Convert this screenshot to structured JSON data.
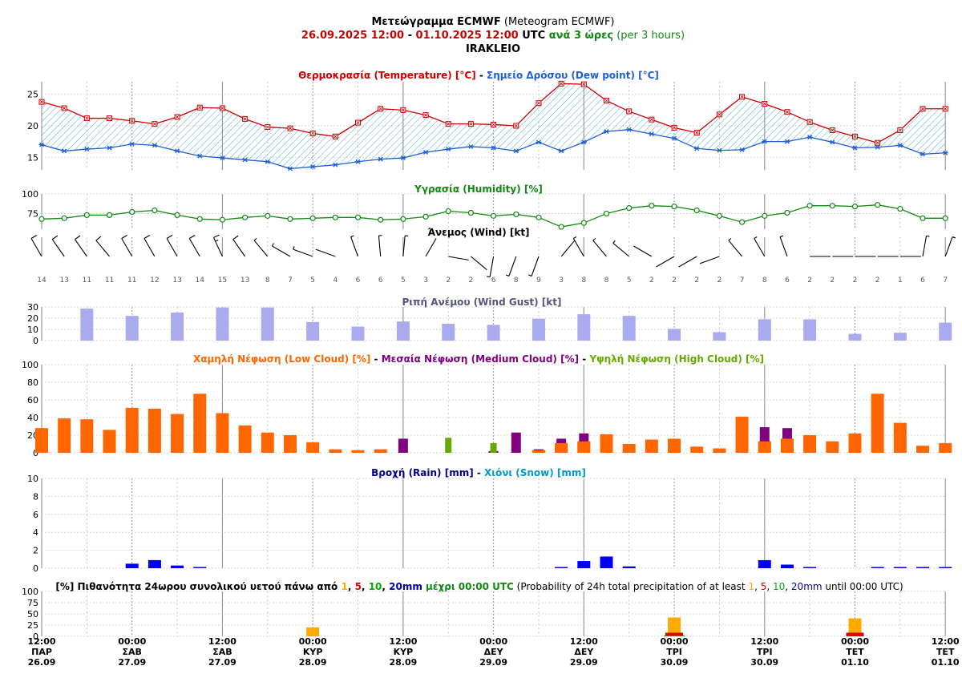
{
  "header": {
    "line1_bold": "Μετεώγραμμα ECMWF",
    "line1_normal": " (Meteogram ECMWF)",
    "start": "26.09.2025 12:00",
    "sep": " - ",
    "end": "01.10.2025 12:00",
    "utc": " UTC ",
    "every": "ανά 3 ώρες",
    "every_en": " (per 3 hours)",
    "location": "IRAKLEIO"
  },
  "panels": {
    "temp": {
      "title_a": "Θερμοκρασία (Temperature) [°C]",
      "title_sep": " - ",
      "title_b": "Σημείο Δρόσου (Dew point) [°C]",
      "yticks": [
        "15",
        "20",
        "25"
      ]
    },
    "humidity": {
      "title": "Υγρασία (Humidity) [%]",
      "yticks": [
        "75",
        "100"
      ]
    },
    "wind": {
      "title": "Άνεμος (Wind) [kt]"
    },
    "gust": {
      "title": "Ριπή Ανέμου (Wind Gust) [kt]",
      "yticks": [
        "0",
        "10",
        "20",
        "30"
      ]
    },
    "cloud": {
      "title_low": "Χαμηλή Νέφωση (Low Cloud) [%]",
      "title_sep1": " - ",
      "title_med": "Μεσαία Νέφωση (Medium Cloud) [%]",
      "title_sep2": " - ",
      "title_high": "Υψηλή Νέφωση (High Cloud) [%]",
      "yticks": [
        "0",
        "20",
        "40",
        "60",
        "80",
        "100"
      ]
    },
    "rain": {
      "title_rain": "Βροχή (Rain) [mm]",
      "title_sep": " - ",
      "title_snow": "Χιόνι (Snow) [mm]",
      "yticks": [
        "0",
        "2",
        "4",
        "6",
        "8",
        "10"
      ]
    },
    "prob": {
      "title_pre": "[%] Πιθανότητα 24ωρου συνολικού υετού πάνω από ",
      "t1": "1",
      "c1": ", ",
      "t5": "5",
      "c2": ", ",
      "t10": "10",
      "c3": ", ",
      "t20": "20mm",
      "title_mid": " μέχρι 00:00 UTC",
      "title_en_pre": " (Probability of 24h total precipitation of at least ",
      "e1": "1",
      "ec1": ", ",
      "e5": "5",
      "ec2": ", ",
      "e10": "10",
      "ec3": ", ",
      "e20": "20mm",
      "title_en_end": " until 00:00 UTC)",
      "yticks": [
        "0",
        "25",
        "50",
        "75",
        "100"
      ]
    }
  },
  "colors": {
    "temperature": "#cc0000",
    "dew_point": "#1f5fd6",
    "humidity": "#118811",
    "gust": "#aaaaee",
    "low_cloud": "#ff6600",
    "medium_cloud": "#800080",
    "high_cloud": "#66aa00",
    "rain": "#0000ee",
    "snow": "#0099cc",
    "prob1": "#ffaa00",
    "prob5": "#dd0000",
    "prob10": "#00aa00",
    "prob20": "#0000aa",
    "hatch": "#4aaed0"
  },
  "chart_data": {
    "type": "meteogram",
    "x_times": [
      "12:00",
      "15:00",
      "18:00",
      "21:00",
      "00:00",
      "03:00",
      "06:00",
      "09:00",
      "12:00",
      "15:00",
      "18:00",
      "21:00",
      "00:00",
      "03:00",
      "06:00",
      "09:00",
      "12:00",
      "15:00",
      "18:00",
      "21:00",
      "00:00",
      "03:00",
      "06:00",
      "09:00",
      "12:00",
      "15:00",
      "18:00",
      "21:00",
      "00:00",
      "03:00",
      "06:00",
      "09:00",
      "12:00",
      "15:00",
      "18:00",
      "21:00",
      "00:00",
      "03:00",
      "06:00",
      "09:00",
      "12:00"
    ],
    "x_axis_labels": [
      {
        "time": "12:00",
        "day": "ΠΑΡ",
        "date": "26.09"
      },
      {
        "time": "00:00",
        "day": "ΣΑΒ",
        "date": "27.09"
      },
      {
        "time": "12:00",
        "day": "ΣΑΒ",
        "date": "27.09"
      },
      {
        "time": "00:00",
        "day": "ΚΥΡ",
        "date": "28.09"
      },
      {
        "time": "12:00",
        "day": "ΚΥΡ",
        "date": "28.09"
      },
      {
        "time": "00:00",
        "day": "ΔΕΥ",
        "date": "29.09"
      },
      {
        "time": "12:00",
        "day": "ΔΕΥ",
        "date": "29.09"
      },
      {
        "time": "00:00",
        "day": "ΤΡΙ",
        "date": "30.09"
      },
      {
        "time": "12:00",
        "day": "ΤΡΙ",
        "date": "30.09"
      },
      {
        "time": "00:00",
        "day": "ΤΕΤ",
        "date": "01.10"
      },
      {
        "time": "12:00",
        "day": "ΤΕΤ",
        "date": "01.10"
      }
    ],
    "series": [
      {
        "name": "Θερμοκρασία (Temperature) [°C]",
        "values": [
          23.8,
          22.8,
          21.2,
          21.2,
          20.8,
          20.3,
          21.4,
          22.9,
          22.8,
          21.1,
          19.8,
          19.6,
          18.8,
          18.3,
          20.5,
          22.7,
          22.5,
          21.7,
          20.3,
          20.3,
          20.2,
          20.0,
          23.6,
          26.7,
          26.6,
          24.0,
          22.3,
          21.0,
          19.7,
          18.9,
          21.8,
          24.6,
          23.5,
          22.2,
          20.6,
          19.3,
          18.3,
          17.3,
          19.3,
          22.7,
          22.7
        ],
        "ylim": [
          13,
          27
        ]
      },
      {
        "name": "Σημείο Δρόσου (Dew point) [°C]",
        "values": [
          17.0,
          16.0,
          16.3,
          16.5,
          17.1,
          16.9,
          16.0,
          15.2,
          14.9,
          14.6,
          14.3,
          13.2,
          13.5,
          13.8,
          14.3,
          14.7,
          14.9,
          15.8,
          16.3,
          16.7,
          16.5,
          16.0,
          17.4,
          16.0,
          17.4,
          19.1,
          19.4,
          18.7,
          18.0,
          16.4,
          16.1,
          16.2,
          17.5,
          17.5,
          18.2,
          17.4,
          16.5,
          16.6,
          16.9,
          15.5,
          15.7
        ]
      },
      {
        "name": "Υγρασία (Humidity) [%]",
        "values": [
          68,
          69,
          73,
          73,
          77,
          79,
          73,
          68,
          67,
          70,
          72,
          68,
          69,
          70,
          70,
          67,
          68,
          71,
          78,
          76,
          72,
          74,
          70,
          58,
          63,
          75,
          82,
          85,
          84,
          79,
          72,
          64,
          72,
          76,
          85,
          85,
          84,
          86,
          81,
          69,
          69
        ],
        "ylim": [
          55,
          100
        ]
      },
      {
        "name": "Άνεμος (Wind) [kt]",
        "values": [
          14,
          13,
          11,
          11,
          11,
          12,
          13,
          14,
          15,
          13,
          8,
          7,
          5,
          4,
          6,
          6,
          5,
          3,
          2,
          2,
          6,
          8,
          9,
          3,
          8,
          8,
          5,
          2,
          2,
          2,
          2,
          7,
          8,
          6,
          2,
          2,
          2,
          2,
          1,
          6,
          7
        ],
        "direction_deg": [
          330,
          325,
          325,
          320,
          330,
          330,
          330,
          330,
          335,
          325,
          320,
          300,
          290,
          290,
          340,
          355,
          5,
          30,
          100,
          130,
          190,
          200,
          200,
          40,
          330,
          320,
          310,
          300,
          240,
          240,
          250,
          320,
          330,
          340,
          90,
          90,
          90,
          90,
          90,
          10,
          20
        ]
      },
      {
        "name": "Ριπή Ανέμου (Wind Gust) [kt]",
        "values": [
          null,
          null,
          28.5,
          null,
          22,
          null,
          25,
          null,
          29.5,
          null,
          29.5,
          null,
          16.5,
          null,
          12.5,
          null,
          17,
          null,
          15,
          null,
          14,
          null,
          19.5,
          null,
          23.5,
          null,
          22,
          null,
          10.5,
          null,
          7.5,
          null,
          19,
          null,
          19,
          null,
          6,
          null,
          7,
          null,
          16
        ],
        "ylim": [
          0,
          30
        ]
      },
      {
        "name": "Χαμηλή Νέφωση (Low Cloud) [%]",
        "values": [
          28,
          39,
          38,
          26,
          51,
          50,
          44,
          67,
          45,
          31,
          23,
          20,
          12,
          4,
          3,
          4,
          0,
          0,
          0,
          0,
          0,
          0,
          3,
          11,
          13,
          21,
          10,
          15,
          16,
          7,
          5,
          41,
          13,
          16,
          20,
          13,
          22,
          67,
          34,
          8,
          11
        ],
        "ylim": [
          0,
          100
        ]
      },
      {
        "name": "Μεσαία Νέφωση (Medium Cloud) [%]",
        "values": [
          0,
          0,
          0,
          0,
          0,
          0,
          0,
          0,
          0,
          0,
          0,
          0,
          0,
          0,
          0,
          0,
          16,
          0,
          0,
          0,
          2,
          23,
          4,
          16,
          22,
          0,
          0,
          0,
          0,
          0,
          0,
          0,
          29,
          28,
          0,
          0,
          0,
          0,
          0,
          0,
          0
        ]
      },
      {
        "name": "Υψηλή Νέφωση (High Cloud) [%]",
        "values": [
          0,
          0,
          0,
          0,
          0,
          0,
          0,
          0,
          0,
          0,
          0,
          0,
          0,
          0,
          0,
          0,
          0,
          0,
          17,
          0,
          11,
          0,
          0,
          0,
          0,
          0,
          0,
          0,
          0,
          0,
          0,
          0,
          0,
          0,
          0,
          0,
          0,
          0,
          0,
          0,
          0
        ]
      },
      {
        "name": "Βροχή (Rain) [mm]",
        "values": [
          0,
          0,
          0,
          0,
          0.5,
          0.9,
          0.3,
          0.1,
          0,
          0,
          0,
          0,
          0,
          0,
          0,
          0,
          0,
          0,
          0,
          0,
          0,
          0,
          0,
          0.05,
          0.8,
          1.3,
          0.2,
          0,
          0,
          0,
          0,
          0,
          0.9,
          0.4,
          0.1,
          0,
          0,
          0.05,
          0.05,
          0.05,
          0.05
        ],
        "ylim": [
          0,
          10
        ]
      },
      {
        "name": "Χιόνι (Snow) [mm]",
        "values": [
          0,
          0,
          0,
          0,
          0,
          0,
          0,
          0,
          0,
          0,
          0,
          0,
          0,
          0,
          0,
          0,
          0,
          0,
          0,
          0,
          0,
          0,
          0,
          0,
          0,
          0,
          0,
          0,
          0,
          0,
          0,
          0,
          0,
          0,
          0,
          0,
          0,
          0,
          0,
          0,
          0
        ]
      },
      {
        "name": "Probability 24h precipitation ≥1mm [%]",
        "values": [
          {
            "day_end": "28.09 00:00",
            "value": 20
          },
          {
            "day_end": "30.09 00:00",
            "value": 42
          },
          {
            "day_end": "01.10 00:00",
            "value": 40
          }
        ],
        "ylim": [
          0,
          100
        ]
      },
      {
        "name": "Probability 24h precipitation ≥5mm [%]",
        "values": [
          {
            "day_end": "30.09 00:00",
            "value": 8
          },
          {
            "day_end": "01.10 00:00",
            "value": 8
          }
        ]
      },
      {
        "name": "Probability 24h precipitation ≥10mm [%]",
        "values": [
          {
            "day_end": "30.09 00:00",
            "value": 2
          }
        ]
      }
    ]
  }
}
